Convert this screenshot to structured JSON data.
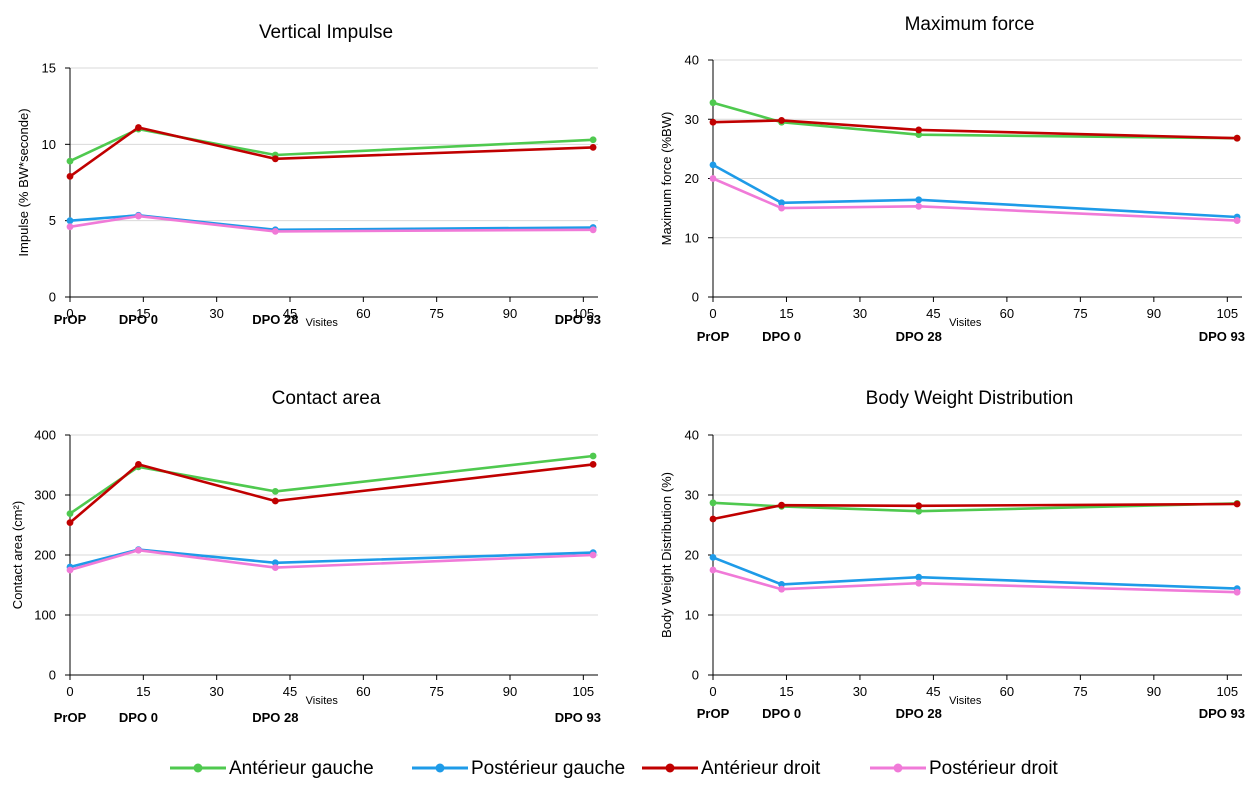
{
  "chart_data": [
    {
      "type": "line",
      "title": "Vertical Impulse",
      "xlabel": "Visites",
      "ylabel": "Impulse (% BW*seconde)",
      "xlim": [
        0,
        108
      ],
      "ylim": [
        0,
        15
      ],
      "xticks": [
        0,
        15,
        30,
        45,
        60,
        75,
        90,
        105
      ],
      "yticks": [
        0,
        5,
        10,
        15
      ],
      "grid": "horizontal",
      "x": [
        0,
        14,
        42,
        107
      ],
      "visit_labels": [
        {
          "x": 0,
          "text": "PrOP"
        },
        {
          "x": 14,
          "text": "DPO 0"
        },
        {
          "x": 42,
          "text": "DPO 28"
        },
        {
          "x": 107,
          "text": "DPO 93"
        }
      ],
      "series": [
        {
          "name": "Antérieur gauche",
          "color": "#4fc94f",
          "values": [
            8.9,
            11.0,
            9.3,
            10.3
          ]
        },
        {
          "name": "Postérieur gauche",
          "color": "#1e9be8",
          "values": [
            5.0,
            5.35,
            4.4,
            4.55
          ]
        },
        {
          "name": "Antérieur droit",
          "color": "#c00000",
          "values": [
            7.9,
            11.1,
            9.05,
            9.8
          ]
        },
        {
          "name": "Postérieur droit",
          "color": "#f07ad8",
          "values": [
            4.6,
            5.3,
            4.3,
            4.4
          ]
        }
      ]
    },
    {
      "type": "line",
      "title": "Maximum force",
      "xlabel": "Visites",
      "ylabel": "Maximum force (%BW)",
      "xlim": [
        0,
        108
      ],
      "ylim": [
        0,
        40
      ],
      "xticks": [
        0,
        15,
        30,
        45,
        60,
        75,
        90,
        105
      ],
      "yticks": [
        0,
        10,
        20,
        30,
        40
      ],
      "grid": "horizontal",
      "x": [
        0,
        14,
        42,
        107
      ],
      "visit_labels": [
        {
          "x": 0,
          "text": "PrOP"
        },
        {
          "x": 14,
          "text": "DPO 0"
        },
        {
          "x": 42,
          "text": "DPO 28"
        },
        {
          "x": 107,
          "text": "DPO 93"
        }
      ],
      "series": [
        {
          "name": "Antérieur gauche",
          "color": "#4fc94f",
          "values": [
            32.8,
            29.5,
            27.4,
            26.8
          ]
        },
        {
          "name": "Postérieur gauche",
          "color": "#1e9be8",
          "values": [
            22.3,
            15.9,
            16.4,
            13.5
          ]
        },
        {
          "name": "Antérieur droit",
          "color": "#c00000",
          "values": [
            29.5,
            29.8,
            28.2,
            26.8
          ]
        },
        {
          "name": "Postérieur droit",
          "color": "#f07ad8",
          "values": [
            20.0,
            15.0,
            15.3,
            12.9
          ]
        }
      ]
    },
    {
      "type": "line",
      "title": "Contact area",
      "xlabel": "Visites",
      "ylabel": "Contact area (cm²)",
      "xlim": [
        0,
        108
      ],
      "ylim": [
        0,
        400
      ],
      "xticks": [
        0,
        15,
        30,
        45,
        60,
        75,
        90,
        105
      ],
      "yticks": [
        0,
        100,
        200,
        300,
        400
      ],
      "grid": "horizontal",
      "x": [
        0,
        14,
        42,
        107
      ],
      "visit_labels": [
        {
          "x": 0,
          "text": "PrOP"
        },
        {
          "x": 14,
          "text": "DPO 0"
        },
        {
          "x": 42,
          "text": "DPO 28"
        },
        {
          "x": 107,
          "text": "DPO 93"
        }
      ],
      "series": [
        {
          "name": "Antérieur gauche",
          "color": "#4fc94f",
          "values": [
            269,
            347,
            306,
            365
          ]
        },
        {
          "name": "Postérieur gauche",
          "color": "#1e9be8",
          "values": [
            180,
            209,
            187,
            204
          ]
        },
        {
          "name": "Antérieur droit",
          "color": "#c00000",
          "values": [
            254,
            351,
            290,
            351
          ]
        },
        {
          "name": "Postérieur droit",
          "color": "#f07ad8",
          "values": [
            175,
            208,
            179,
            200
          ]
        }
      ]
    },
    {
      "type": "line",
      "title": "Body Weight Distribution",
      "xlabel": "Visites",
      "ylabel": "Body Weight Distribution (%)",
      "xlim": [
        0,
        108
      ],
      "ylim": [
        0,
        40
      ],
      "xticks": [
        0,
        15,
        30,
        45,
        60,
        75,
        90,
        105
      ],
      "yticks": [
        0,
        10,
        20,
        30,
        40
      ],
      "grid": "horizontal",
      "x": [
        0,
        14,
        42,
        107
      ],
      "visit_labels": [
        {
          "x": 0,
          "text": "PrOP"
        },
        {
          "x": 14,
          "text": "DPO 0"
        },
        {
          "x": 42,
          "text": "DPO 28"
        },
        {
          "x": 107,
          "text": "DPO 93"
        }
      ],
      "series": [
        {
          "name": "Antérieur gauche",
          "color": "#4fc94f",
          "values": [
            28.7,
            28.1,
            27.3,
            28.6
          ]
        },
        {
          "name": "Postérieur gauche",
          "color": "#1e9be8",
          "values": [
            19.6,
            15.1,
            16.3,
            14.4
          ]
        },
        {
          "name": "Antérieur droit",
          "color": "#c00000",
          "values": [
            26.0,
            28.3,
            28.2,
            28.5
          ]
        },
        {
          "name": "Postérieur droit",
          "color": "#f07ad8",
          "values": [
            17.5,
            14.3,
            15.3,
            13.8
          ]
        }
      ]
    }
  ],
  "legend": {
    "placement": "bottom",
    "items": [
      {
        "label": "Antérieur gauche",
        "color": "#4fc94f"
      },
      {
        "label": "Postérieur gauche",
        "color": "#1e9be8"
      },
      {
        "label": "Antérieur droit",
        "color": "#c00000"
      },
      {
        "label": "Postérieur droit",
        "color": "#f07ad8"
      }
    ]
  }
}
